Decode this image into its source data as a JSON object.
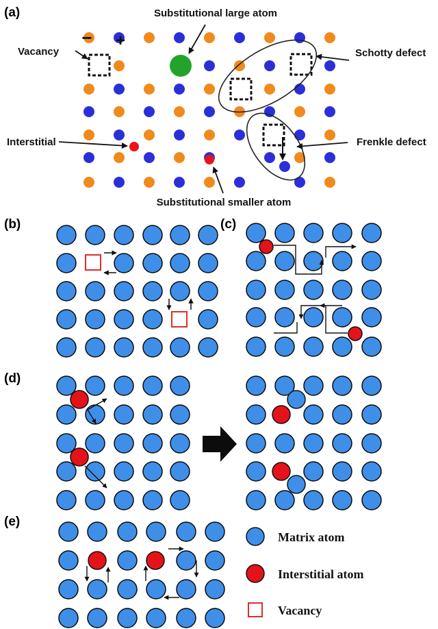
{
  "panels": {
    "a": "(a)",
    "b": "(b)",
    "c": "(c)",
    "d": "(d)",
    "e": "(e)"
  },
  "panel_a_labels": {
    "substitutional_large": "Substitutional large atom",
    "vacancy": "Vacancy",
    "schottky": "Schotty defect",
    "interstitial": "Interstitial",
    "frenkel": "Frenkle defect",
    "substitutional_small": "Substitutional smaller atom",
    "minus_sign": "−",
    "plus_sign": "+"
  },
  "legend": {
    "matrix_atom": "Matrix atom",
    "interstitial_atom": "Interstitial atom",
    "vacancy": "Vacancy"
  },
  "colors": {
    "orange_ion": "#f08a1c",
    "blue_ion": "#2b2fd8",
    "large_atom": "#23a32a",
    "small_atom": "#e8141c",
    "matrix_atom": "#3f8fe8",
    "interstitial_atom": "#e4131a",
    "vacancy_outline": "#d9302b",
    "outline": "#0a0a0a"
  }
}
